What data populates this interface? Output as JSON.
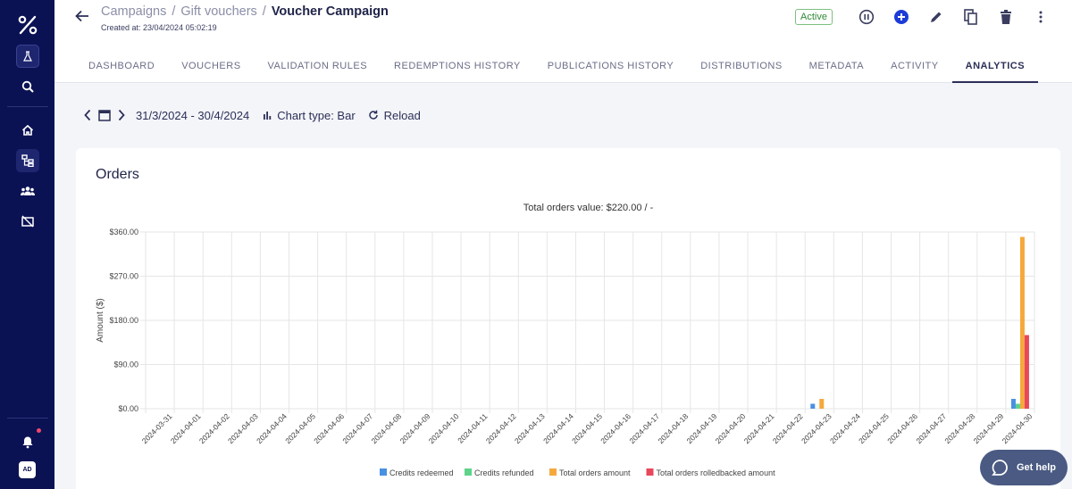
{
  "sidebar": {
    "items": [
      {
        "name": "lab",
        "icon": "beaker-icon"
      },
      {
        "name": "search",
        "icon": "search-icon"
      },
      {
        "name": "home",
        "icon": "home-icon"
      },
      {
        "name": "campaigns",
        "icon": "hierarchy-icon"
      },
      {
        "name": "customers",
        "icon": "users-icon"
      },
      {
        "name": "vouchers",
        "icon": "voucher-icon"
      }
    ],
    "notifications_icon": "bell-icon",
    "avatar_text": "AD"
  },
  "header": {
    "breadcrumbs": [
      "Campaigns",
      "Gift vouchers"
    ],
    "separator": "/",
    "title": "Voucher Campaign",
    "created": "Created at: 23/04/2024 05:02:19",
    "status": "Active"
  },
  "tabs": [
    {
      "label": "DASHBOARD",
      "active": false
    },
    {
      "label": "VOUCHERS",
      "active": false
    },
    {
      "label": "VALIDATION RULES",
      "active": false
    },
    {
      "label": "REDEMPTIONS HISTORY",
      "active": false
    },
    {
      "label": "PUBLICATIONS HISTORY",
      "active": false
    },
    {
      "label": "DISTRIBUTIONS",
      "active": false
    },
    {
      "label": "METADATA",
      "active": false
    },
    {
      "label": "ACTIVITY",
      "active": false
    },
    {
      "label": "ANALYTICS",
      "active": true
    }
  ],
  "toolbar": {
    "date_range": "31/3/2024 - 30/4/2024",
    "chart_type": "Chart type: Bar",
    "reload": "Reload"
  },
  "card": {
    "title": "Orders"
  },
  "help": {
    "label": "Get help"
  },
  "colors": {
    "credits_redeemed": "#4a90e2",
    "credits_refunded": "#5fd38a",
    "total_orders_amount": "#f5a93c",
    "total_orders_rolledbacked": "#e8485c",
    "sidebar_bg": "#0b1254"
  },
  "chart_data": {
    "type": "bar",
    "title": "Total orders value: $220.00 / -",
    "xlabel": "",
    "ylabel": "Amount ($)",
    "ylim": [
      0,
      360
    ],
    "yticks": [
      "$0.00",
      "$90.00",
      "$180.00",
      "$270.00",
      "$360.00"
    ],
    "ytick_values": [
      0,
      90,
      180,
      270,
      360
    ],
    "grid": true,
    "legend_position": "bottom",
    "categories": [
      "2024-03-31",
      "2024-04-01",
      "2024-04-02",
      "2024-04-03",
      "2024-04-04",
      "2024-04-05",
      "2024-04-06",
      "2024-04-07",
      "2024-04-08",
      "2024-04-09",
      "2024-04-10",
      "2024-04-11",
      "2024-04-12",
      "2024-04-13",
      "2024-04-14",
      "2024-04-15",
      "2024-04-16",
      "2024-04-17",
      "2024-04-18",
      "2024-04-19",
      "2024-04-20",
      "2024-04-21",
      "2024-04-22",
      "2024-04-23",
      "2024-04-24",
      "2024-04-25",
      "2024-04-26",
      "2024-04-27",
      "2024-04-28",
      "2024-04-29",
      "2024-04-30"
    ],
    "series": [
      {
        "name": "Credits redeemed",
        "values": [
          0,
          0,
          0,
          0,
          0,
          0,
          0,
          0,
          0,
          0,
          0,
          0,
          0,
          0,
          0,
          0,
          0,
          0,
          0,
          0,
          0,
          0,
          0,
          10,
          0,
          0,
          0,
          0,
          0,
          0,
          20
        ]
      },
      {
        "name": "Credits refunded",
        "values": [
          0,
          0,
          0,
          0,
          0,
          0,
          0,
          0,
          0,
          0,
          0,
          0,
          0,
          0,
          0,
          0,
          0,
          0,
          0,
          0,
          0,
          0,
          0,
          0,
          0,
          0,
          0,
          0,
          0,
          0,
          10
        ]
      },
      {
        "name": "Total orders amount",
        "values": [
          0,
          0,
          0,
          0,
          0,
          0,
          0,
          0,
          0,
          0,
          0,
          0,
          0,
          0,
          0,
          0,
          0,
          0,
          0,
          0,
          0,
          0,
          0,
          20,
          0,
          0,
          0,
          0,
          0,
          0,
          350
        ]
      },
      {
        "name": "Total orders rolledbacked amount",
        "values": [
          0,
          0,
          0,
          0,
          0,
          0,
          0,
          0,
          0,
          0,
          0,
          0,
          0,
          0,
          0,
          0,
          0,
          0,
          0,
          0,
          0,
          0,
          0,
          0,
          0,
          0,
          0,
          0,
          0,
          0,
          150
        ]
      }
    ]
  }
}
